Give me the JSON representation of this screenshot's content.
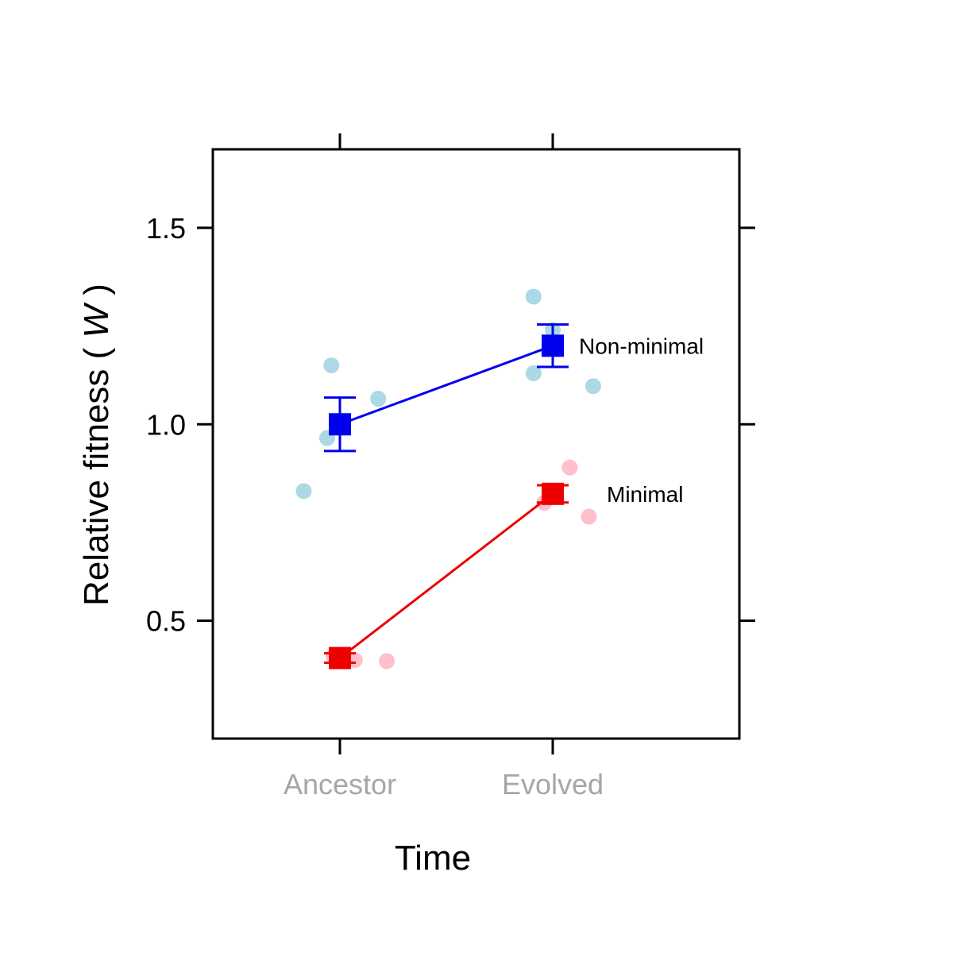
{
  "chart_data": {
    "type": "line",
    "categories": [
      "Ancestor",
      "Evolved"
    ],
    "category_label_color": "#a6a6a6",
    "xlabel": "Time",
    "ylabel_prefix": "Relative fitness ( ",
    "ylabel_var": "W",
    "ylabel_suffix": " )",
    "ylim": [
      0.2,
      1.7
    ],
    "yticks": [
      "0.5",
      "1.0",
      "1.5"
    ],
    "grid": false,
    "series": [
      {
        "name": "Non-minimal",
        "color": "#0000ee",
        "point_color": "#add8e6",
        "means": [
          1.0,
          1.2
        ],
        "errors": [
          0.068,
          0.054
        ],
        "points": [
          {
            "category": "Ancestor",
            "offset": -0.17,
            "y": 0.83
          },
          {
            "category": "Ancestor",
            "offset": -0.06,
            "y": 0.965
          },
          {
            "category": "Ancestor",
            "offset": -0.04,
            "y": 1.15
          },
          {
            "category": "Ancestor",
            "offset": 0.18,
            "y": 1.065
          },
          {
            "category": "Evolved",
            "offset": -0.09,
            "y": 1.325
          },
          {
            "category": "Evolved",
            "offset": -0.09,
            "y": 1.13
          },
          {
            "category": "Evolved",
            "offset": 0.0,
            "y": 1.24
          },
          {
            "category": "Evolved",
            "offset": 0.19,
            "y": 1.097
          }
        ]
      },
      {
        "name": "Minimal",
        "color": "#ee0000",
        "point_color": "#ffc0cb",
        "means": [
          0.405,
          0.823
        ],
        "errors": [
          0.012,
          0.022
        ],
        "points": [
          {
            "category": "Ancestor",
            "offset": -0.03,
            "y": 0.41
          },
          {
            "category": "Ancestor",
            "offset": 0.07,
            "y": 0.4
          },
          {
            "category": "Ancestor",
            "offset": 0.22,
            "y": 0.397
          },
          {
            "category": "Evolved",
            "offset": -0.04,
            "y": 0.8
          },
          {
            "category": "Evolved",
            "offset": 0.08,
            "y": 0.89
          },
          {
            "category": "Evolved",
            "offset": 0.17,
            "y": 0.765
          }
        ]
      }
    ]
  }
}
